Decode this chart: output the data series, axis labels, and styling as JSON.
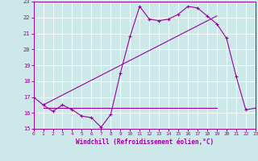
{
  "xlabel": "Windchill (Refroidissement éolien,°C)",
  "bg_color": "#cce8e8",
  "line_color": "#990099",
  "grid_color": "#ffffff",
  "xmin": 0,
  "xmax": 23,
  "ymin": 15,
  "ymax": 23,
  "series1_x": [
    0,
    1,
    2,
    3,
    4,
    5,
    6,
    7,
    8,
    9,
    10,
    11,
    12,
    13,
    14,
    15,
    16,
    17,
    18,
    19,
    20,
    21,
    22,
    23
  ],
  "series1_y": [
    17.0,
    16.5,
    16.1,
    16.5,
    16.2,
    15.8,
    15.7,
    15.1,
    15.9,
    18.5,
    20.8,
    22.7,
    21.9,
    21.8,
    21.9,
    22.2,
    22.7,
    22.6,
    22.1,
    21.6,
    20.7,
    18.3,
    16.2,
    16.3
  ],
  "series2_x": [
    1,
    19
  ],
  "series2_y": [
    16.3,
    16.3
  ],
  "series3_x": [
    1,
    19
  ],
  "series3_y": [
    16.5,
    22.1
  ],
  "yticks": [
    15,
    16,
    17,
    18,
    19,
    20,
    21,
    22,
    23
  ],
  "xticks": [
    0,
    1,
    2,
    3,
    4,
    5,
    6,
    7,
    8,
    9,
    10,
    11,
    12,
    13,
    14,
    15,
    16,
    17,
    18,
    19,
    20,
    21,
    22,
    23
  ]
}
